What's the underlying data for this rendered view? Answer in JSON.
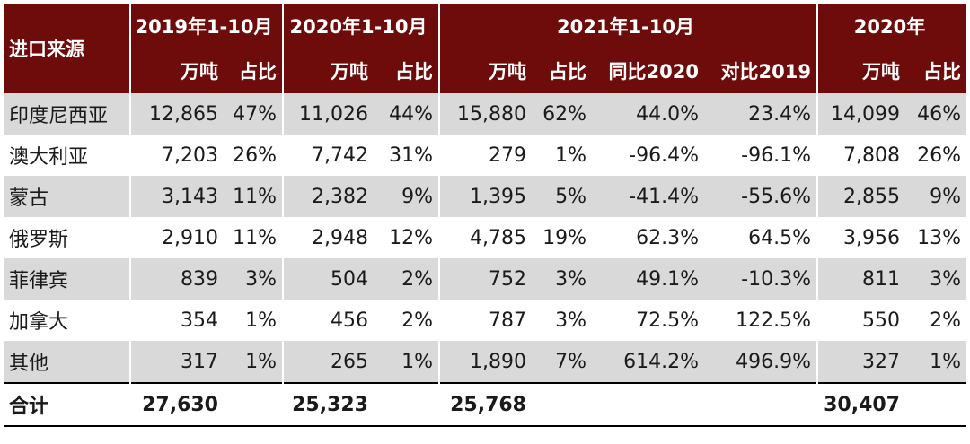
{
  "header": {
    "source_label": "进口来源",
    "groups": [
      "2019年1-10月",
      "2020年1-10月",
      "2021年1-10月",
      "2020年"
    ],
    "units": {
      "tons": "万吨",
      "share": "占比",
      "yoy2020": "同比2020",
      "vs2019": "对比2019"
    }
  },
  "rows": [
    {
      "name": "印度尼西亚",
      "v2019": "12,865",
      "s2019": "47%",
      "v2020": "11,026",
      "s2020": "44%",
      "v2021": "15,880",
      "s2021": "62%",
      "yoy": "44.0%",
      "vs19": "23.4%",
      "vfy": "14,099",
      "sfy": "46%"
    },
    {
      "name": "澳大利亚",
      "v2019": "7,203",
      "s2019": "26%",
      "v2020": "7,742",
      "s2020": "31%",
      "v2021": "279",
      "s2021": "1%",
      "yoy": "-96.4%",
      "vs19": "-96.1%",
      "vfy": "7,808",
      "sfy": "26%"
    },
    {
      "name": "蒙古",
      "v2019": "3,143",
      "s2019": "11%",
      "v2020": "2,382",
      "s2020": "9%",
      "v2021": "1,395",
      "s2021": "5%",
      "yoy": "-41.4%",
      "vs19": "-55.6%",
      "vfy": "2,855",
      "sfy": "9%"
    },
    {
      "name": "俄罗斯",
      "v2019": "2,910",
      "s2019": "11%",
      "v2020": "2,948",
      "s2020": "12%",
      "v2021": "4,785",
      "s2021": "19%",
      "yoy": "62.3%",
      "vs19": "64.5%",
      "vfy": "3,956",
      "sfy": "13%"
    },
    {
      "name": "菲律宾",
      "v2019": "839",
      "s2019": "3%",
      "v2020": "504",
      "s2020": "2%",
      "v2021": "752",
      "s2021": "3%",
      "yoy": "49.1%",
      "vs19": "-10.3%",
      "vfy": "811",
      "sfy": "3%"
    },
    {
      "name": "加拿大",
      "v2019": "354",
      "s2019": "1%",
      "v2020": "456",
      "s2020": "2%",
      "v2021": "787",
      "s2021": "3%",
      "yoy": "72.5%",
      "vs19": "122.5%",
      "vfy": "550",
      "sfy": "2%"
    },
    {
      "name": "其他",
      "v2019": "317",
      "s2019": "1%",
      "v2020": "265",
      "s2020": "1%",
      "v2021": "1,890",
      "s2021": "7%",
      "yoy": "614.2%",
      "vs19": "496.9%",
      "vfy": "327",
      "sfy": "1%"
    }
  ],
  "total": {
    "name": "合计",
    "v2019": "27,630",
    "v2020": "25,323",
    "v2021": "25,768",
    "vfy": "30,407"
  },
  "colors": {
    "header_bg": "#6e0b0b",
    "stripe": "#d9d9d9"
  }
}
